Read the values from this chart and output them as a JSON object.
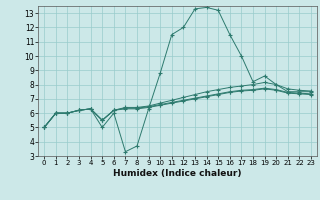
{
  "xlabel": "Humidex (Indice chaleur)",
  "ylabel": "",
  "background_color": "#cce8e8",
  "grid_color": "#99cccc",
  "line_color": "#2d7a6e",
  "xlim": [
    -0.5,
    23.5
  ],
  "ylim": [
    3,
    13.5
  ],
  "xticks": [
    0,
    1,
    2,
    3,
    4,
    5,
    6,
    7,
    8,
    9,
    10,
    11,
    12,
    13,
    14,
    15,
    16,
    17,
    18,
    19,
    20,
    21,
    22,
    23
  ],
  "yticks": [
    3,
    4,
    5,
    6,
    7,
    8,
    9,
    10,
    11,
    12,
    13
  ],
  "series": [
    [
      5.0,
      6.0,
      6.0,
      6.2,
      6.3,
      5.0,
      6.0,
      3.3,
      3.7,
      6.3,
      8.8,
      11.5,
      12.0,
      13.3,
      13.4,
      13.2,
      11.5,
      10.0,
      8.2,
      8.6,
      8.0,
      7.5,
      7.5,
      7.5
    ],
    [
      5.0,
      6.0,
      6.0,
      6.2,
      6.3,
      5.5,
      6.2,
      6.4,
      6.4,
      6.5,
      6.7,
      6.9,
      7.1,
      7.3,
      7.5,
      7.65,
      7.8,
      7.9,
      8.0,
      8.15,
      8.0,
      7.7,
      7.6,
      7.55
    ],
    [
      5.0,
      6.0,
      6.0,
      6.2,
      6.3,
      5.5,
      6.2,
      6.35,
      6.35,
      6.45,
      6.6,
      6.75,
      6.9,
      7.05,
      7.2,
      7.35,
      7.5,
      7.6,
      7.65,
      7.75,
      7.65,
      7.45,
      7.4,
      7.35
    ],
    [
      5.0,
      6.0,
      6.0,
      6.2,
      6.3,
      5.5,
      6.2,
      6.3,
      6.3,
      6.4,
      6.55,
      6.7,
      6.85,
      7.0,
      7.15,
      7.3,
      7.45,
      7.55,
      7.6,
      7.7,
      7.6,
      7.4,
      7.35,
      7.3
    ]
  ]
}
